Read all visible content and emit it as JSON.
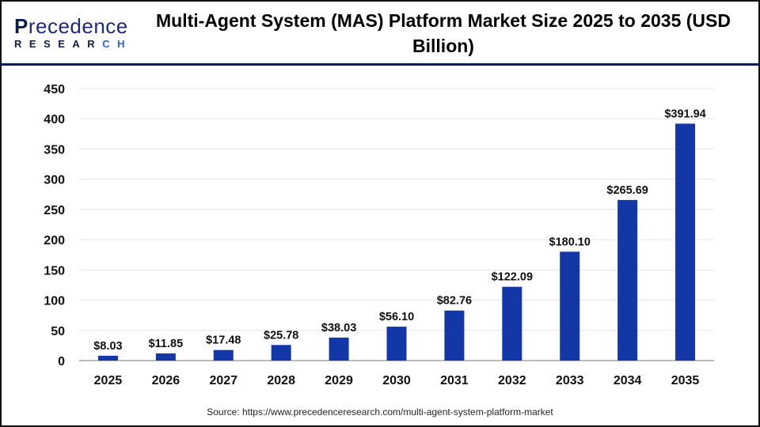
{
  "logo": {
    "text_top": "Precedence",
    "text_bottom": "RESEARCH"
  },
  "title": "Multi-Agent System (MAS) Platform Market Size 2025 to 2035 (USD Billion)",
  "source": "Source: https://www.precedenceresearch.com/multi-agent-system-platform-market",
  "colors": {
    "bar": "#1437a8",
    "header_line": "#0d1b4a"
  },
  "chart_data": {
    "type": "bar",
    "title": "Multi-Agent System (MAS) Platform Market Size 2025 to 2035 (USD Billion)",
    "categories": [
      "2025",
      "2026",
      "2027",
      "2028",
      "2029",
      "2030",
      "2031",
      "2032",
      "2033",
      "2034",
      "2035"
    ],
    "values": [
      8.03,
      11.85,
      17.48,
      25.78,
      38.03,
      56.1,
      82.76,
      122.09,
      180.1,
      265.69,
      391.94
    ],
    "data_labels": [
      "$8.03",
      "$11.85",
      "$17.48",
      "$25.78",
      "$38.03",
      "$56.10",
      "$82.76",
      "$122.09",
      "$180.10",
      "$265.69",
      "$391.94"
    ],
    "ylim": [
      0,
      450
    ],
    "yticks": [
      0,
      50,
      100,
      150,
      200,
      250,
      300,
      350,
      400,
      450
    ],
    "grid": true,
    "legend": "none",
    "xlabel": "",
    "ylabel": ""
  }
}
